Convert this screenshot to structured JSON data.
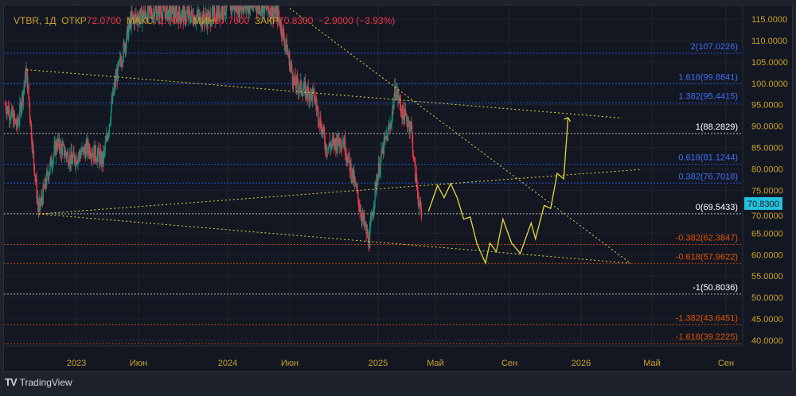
{
  "header": {
    "symbol": "VTBR, 1Д",
    "open_label": "ОТКР",
    "open": "72.0700",
    "high_label": "МАКС",
    "high": "72.7000",
    "low_label": "МИН",
    "low": "67.7600",
    "close_label": "ЗАКР",
    "close": "70.8300",
    "change": "−2.9000",
    "change_pct": "(−3.93%)"
  },
  "branding": {
    "logo": "TradingView"
  },
  "colors": {
    "up": "#089981",
    "down": "#f23645",
    "drawing": "#e6d83a",
    "axis_text": "#c9a227",
    "last_price_bg": "#22c1dc"
  },
  "chart_data": {
    "type": "candlestick",
    "title": "VTBR 1D",
    "ylim": [
      38,
      118
    ],
    "y_ticks": [
      "115.0000",
      "110.0000",
      "105.0000",
      "100.0000",
      "95.0000",
      "90.0000",
      "85.0000",
      "80.0000",
      "75.0000",
      "70.0000",
      "65.0000",
      "60.0000",
      "55.0000",
      "50.0000",
      "45.0000",
      "40.0000"
    ],
    "x_ticks": [
      {
        "label": "2023",
        "t": 2023.0
      },
      {
        "label": "Июн",
        "t": 2023.42
      },
      {
        "label": "2024",
        "t": 2024.0
      },
      {
        "label": "Июн",
        "t": 2024.42
      },
      {
        "label": "2025",
        "t": 2025.0
      },
      {
        "label": "Май",
        "t": 2025.33
      },
      {
        "label": "Сен",
        "t": 2025.67
      },
      {
        "label": "2026",
        "t": 2026.0
      },
      {
        "label": "Май",
        "t": 2026.33
      },
      {
        "label": "Сен",
        "t": 2026.67
      }
    ],
    "last_price": "70.8300",
    "price_path": [
      [
        2022.53,
        95
      ],
      [
        2022.61,
        90
      ],
      [
        2022.67,
        103
      ],
      [
        2022.71,
        85
      ],
      [
        2022.75,
        70
      ],
      [
        2022.82,
        80
      ],
      [
        2022.87,
        86
      ],
      [
        2022.97,
        82
      ],
      [
        2023.08,
        85
      ],
      [
        2023.18,
        82
      ],
      [
        2023.21,
        88
      ],
      [
        2023.26,
        100
      ],
      [
        2023.32,
        108
      ],
      [
        2023.37,
        115
      ],
      [
        2023.55,
        117
      ],
      [
        2023.87,
        115
      ],
      [
        2024.0,
        118
      ],
      [
        2024.24,
        118
      ],
      [
        2024.34,
        116
      ],
      [
        2024.4,
        108
      ],
      [
        2024.45,
        100
      ],
      [
        2024.58,
        97
      ],
      [
        2024.66,
        85
      ],
      [
        2024.77,
        87
      ],
      [
        2024.85,
        76
      ],
      [
        2024.9,
        68
      ],
      [
        2024.94,
        63
      ],
      [
        2024.98,
        75
      ],
      [
        2025.03,
        85
      ],
      [
        2025.07,
        90
      ],
      [
        2025.1,
        99
      ],
      [
        2025.14,
        93
      ],
      [
        2025.19,
        90
      ],
      [
        2025.21,
        80
      ],
      [
        2025.25,
        68
      ]
    ],
    "projection": [
      [
        2025.29,
        70.1
      ],
      [
        2025.34,
        76.2
      ],
      [
        2025.37,
        73.3
      ],
      [
        2025.4,
        76.6
      ],
      [
        2025.43,
        73.3
      ],
      [
        2025.46,
        68.3
      ],
      [
        2025.49,
        68.8
      ],
      [
        2025.52,
        62.7
      ],
      [
        2025.56,
        58.0
      ],
      [
        2025.58,
        62.7
      ],
      [
        2025.61,
        60.7
      ],
      [
        2025.64,
        68.3
      ],
      [
        2025.68,
        62.7
      ],
      [
        2025.72,
        60.3
      ],
      [
        2025.77,
        67.4
      ],
      [
        2025.79,
        63.7
      ],
      [
        2025.83,
        71.5
      ],
      [
        2025.86,
        70.8
      ],
      [
        2025.89,
        79.0
      ],
      [
        2025.92,
        77.7
      ],
      [
        2025.94,
        92.0
      ]
    ],
    "trendlines": [
      [
        [
          2022.67,
          103.2
        ],
        [
          2026.19,
          91.9
        ]
      ],
      [
        [
          2022.75,
          69.5
        ],
        [
          2026.28,
          79.9
        ]
      ],
      [
        [
          2022.75,
          69.5
        ],
        [
          2026.23,
          58.0
        ]
      ],
      [
        [
          2024.42,
          117.5
        ],
        [
          2026.23,
          58.0
        ]
      ]
    ],
    "fib_levels": [
      {
        "label": "2(107.0226)",
        "price": 107.0226,
        "color": "#2962ff"
      },
      {
        "label": "1.618(99.8641)",
        "price": 99.8641,
        "color": "#2962ff"
      },
      {
        "label": "1.382(95.4415)",
        "price": 95.4415,
        "color": "#2962ff"
      },
      {
        "label": "1(88.2829)",
        "price": 88.2829,
        "color": "#ffffff"
      },
      {
        "label": "0.618(81.1244)",
        "price": 81.1244,
        "color": "#2962ff"
      },
      {
        "label": "0.382(76.7018)",
        "price": 76.7018,
        "color": "#2962ff"
      },
      {
        "label": "0(69.5433)",
        "price": 69.5433,
        "color": "#ffffff"
      },
      {
        "label": "-0.382(62.3847)",
        "price": 62.3847,
        "color": "#e65100"
      },
      {
        "label": "-0.618(57.9622)",
        "price": 57.9622,
        "color": "#e65100"
      },
      {
        "label": "-1(50.8036)",
        "price": 50.8036,
        "color": "#ffffff"
      },
      {
        "label": "-1.382(43.6451)",
        "price": 43.6451,
        "color": "#e65100"
      },
      {
        "label": "-1.618(39.2225)",
        "price": 39.2225,
        "color": "#e65100"
      }
    ]
  }
}
